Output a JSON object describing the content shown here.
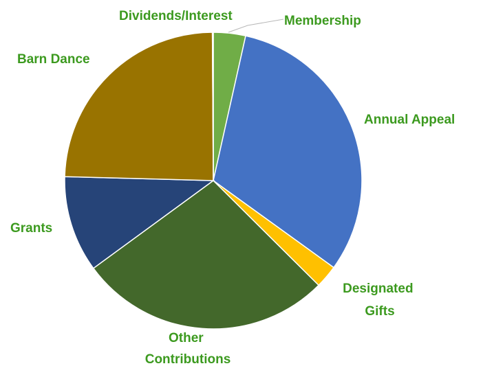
{
  "chart_data": {
    "type": "pie",
    "title": "",
    "label_color": "#3C9A1F",
    "slices": [
      {
        "label": "Membership",
        "lines": [
          "Membership"
        ],
        "value": 3.5,
        "color": "#70AD47"
      },
      {
        "label": "Annual Appeal",
        "lines": [
          "Annual Appeal"
        ],
        "value": 31.5,
        "color": "#4472C4"
      },
      {
        "label": "Designated Gifts",
        "lines": [
          "Designated",
          "Gifts"
        ],
        "value": 2.5,
        "color": "#FFC000"
      },
      {
        "label": "Other Contributions",
        "lines": [
          "Other",
          "Contributions"
        ],
        "value": 27.5,
        "color": "#43682B"
      },
      {
        "label": "Grants",
        "lines": [
          "Grants"
        ],
        "value": 10.5,
        "color": "#264478"
      },
      {
        "label": "Barn Dance",
        "lines": [
          "Barn Dance"
        ],
        "value": 24.5,
        "color": "#997300"
      },
      {
        "label": "Dividends/Interest",
        "lines": [
          "Dividends/Interest"
        ],
        "value": 0.1,
        "color": "#636363"
      }
    ]
  }
}
